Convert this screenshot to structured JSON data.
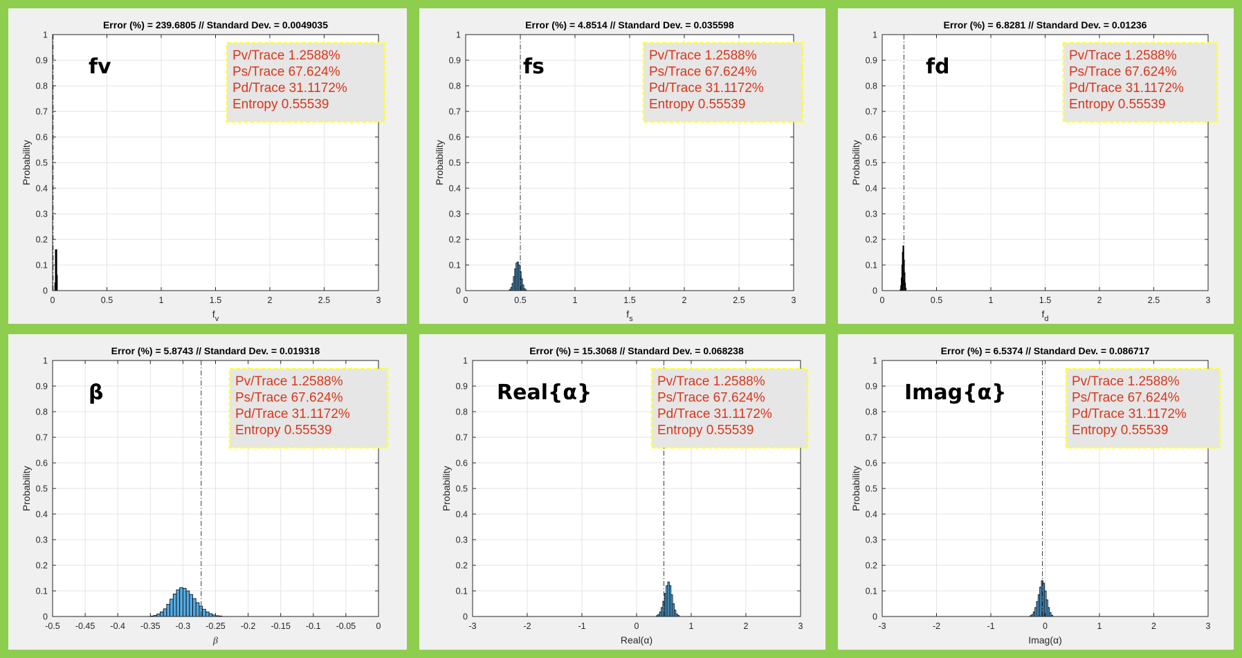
{
  "stats": {
    "pv_trace": "Pv/Trace 1.2588%",
    "ps_trace": "Ps/Trace 67.624%",
    "pd_trace": "Pd/Trace 31.1172%",
    "entropy": "Entropy 0.55539"
  },
  "colors": {
    "background": "#8dce4f",
    "panel": "#f0f0f0",
    "bar_fill": "#56a8df",
    "bar_edge": "#000000",
    "info_text": "#d9361a",
    "info_border": "#ffff33",
    "info_bg": "#e6e6e6"
  },
  "chart_data": [
    {
      "type": "bar",
      "title": "Error (%) = 239.6805 // Standard Dev. = 0.0049035",
      "annotation": "fv",
      "ylabel": "Probability",
      "xlabel": "f",
      "xlabel_sub": "v",
      "xlim": [
        0,
        3
      ],
      "ylim": [
        0,
        1
      ],
      "xticks": [
        0,
        0.5,
        1,
        1.5,
        2,
        2.5,
        3
      ],
      "xtick_labels": [
        "0",
        "0.5",
        "1",
        "1.5",
        "2",
        "2.5",
        "3"
      ],
      "yticks": [
        0,
        0.1,
        0.2,
        0.3,
        0.4,
        0.5,
        0.6,
        0.7,
        0.8,
        0.9,
        1
      ],
      "ytick_labels": [
        "0",
        "0.1",
        "0.2",
        "0.3",
        "0.4",
        "0.5",
        "0.6",
        "0.7",
        "0.8",
        "0.9",
        "1"
      ],
      "reference_line": 0.005,
      "bins_start": 0.02,
      "bin_width": 0.0048,
      "values": [
        0.03,
        0.16,
        0.06,
        0.16,
        0.06
      ]
    },
    {
      "type": "bar",
      "title": "Error (%) = 4.8514 // Standard Dev. = 0.035598",
      "annotation": "fs",
      "ylabel": "Probability",
      "xlabel": "f",
      "xlabel_sub": "s",
      "xlim": [
        0,
        3
      ],
      "ylim": [
        0,
        1
      ],
      "xticks": [
        0,
        0.5,
        1,
        1.5,
        2,
        2.5,
        3
      ],
      "xtick_labels": [
        "0",
        "0.5",
        "1",
        "1.5",
        "2",
        "2.5",
        "3"
      ],
      "yticks": [
        0,
        0.1,
        0.2,
        0.3,
        0.4,
        0.5,
        0.6,
        0.7,
        0.8,
        0.9,
        1
      ],
      "ytick_labels": [
        "0",
        "0.1",
        "0.2",
        "0.3",
        "0.4",
        "0.5",
        "0.6",
        "0.7",
        "0.8",
        "0.9",
        "1"
      ],
      "reference_line": 0.5,
      "bins_start": 0.4,
      "bin_width": 0.012,
      "values": [
        0.004,
        0.012,
        0.028,
        0.055,
        0.085,
        0.108,
        0.112,
        0.1,
        0.075,
        0.046,
        0.022,
        0.008,
        0.003
      ]
    },
    {
      "type": "bar",
      "title": "Error (%) = 6.8281 // Standard Dev. = 0.01236",
      "annotation": "fd",
      "ylabel": "Probability",
      "xlabel": "f",
      "xlabel_sub": "d",
      "xlim": [
        0,
        3
      ],
      "ylim": [
        0,
        1
      ],
      "xticks": [
        0,
        0.5,
        1,
        1.5,
        2,
        2.5,
        3
      ],
      "xtick_labels": [
        "0",
        "0.5",
        "1",
        "1.5",
        "2",
        "2.5",
        "3"
      ],
      "yticks": [
        0,
        0.1,
        0.2,
        0.3,
        0.4,
        0.5,
        0.6,
        0.7,
        0.8,
        0.9,
        1
      ],
      "ytick_labels": [
        "0",
        "0.1",
        "0.2",
        "0.3",
        "0.4",
        "0.5",
        "0.6",
        "0.7",
        "0.8",
        "0.9",
        "1"
      ],
      "reference_line": 0.2,
      "bins_start": 0.165,
      "bin_width": 0.005,
      "values": [
        0.005,
        0.02,
        0.05,
        0.1,
        0.15,
        0.175,
        0.16,
        0.12,
        0.07,
        0.03,
        0.01
      ]
    },
    {
      "type": "bar",
      "title": "Error (%) = 5.8743 // Standard Dev. = 0.019318",
      "annotation": "β",
      "ylabel": "Probability",
      "xlabel": "β",
      "xlabel_sub": "",
      "xlim": [
        -0.5,
        0
      ],
      "ylim": [
        0,
        1
      ],
      "xticks": [
        -0.5,
        -0.45,
        -0.4,
        -0.35,
        -0.3,
        -0.25,
        -0.2,
        -0.15,
        -0.1,
        -0.05,
        0
      ],
      "xtick_labels": [
        "-0.5",
        "-0.45",
        "-0.4",
        "-0.35",
        "-0.3",
        "-0.25",
        "-0.2",
        "-0.15",
        "-0.1",
        "-0.05",
        "0"
      ],
      "yticks": [
        0,
        0.1,
        0.2,
        0.3,
        0.4,
        0.5,
        0.6,
        0.7,
        0.8,
        0.9,
        1
      ],
      "ytick_labels": [
        "0",
        "0.1",
        "0.2",
        "0.3",
        "0.4",
        "0.5",
        "0.6",
        "0.7",
        "0.8",
        "0.9",
        "1"
      ],
      "reference_line": -0.272,
      "bins_start": -0.35,
      "bin_width": 0.005,
      "values": [
        0.002,
        0.004,
        0.01,
        0.018,
        0.03,
        0.048,
        0.068,
        0.088,
        0.104,
        0.113,
        0.11,
        0.1,
        0.086,
        0.07,
        0.054,
        0.04,
        0.028,
        0.018,
        0.011,
        0.006,
        0.003,
        0.002
      ]
    },
    {
      "type": "bar",
      "title": "Error (%) = 15.3068 // Standard Dev. = 0.068238",
      "annotation": "Real{α}",
      "ylabel": "Probability",
      "xlabel": "Real(α)",
      "xlabel_sub": "",
      "xlim": [
        -3,
        3
      ],
      "ylim": [
        0,
        1
      ],
      "xticks": [
        -3,
        -2,
        -1,
        0,
        1,
        2,
        3
      ],
      "xtick_labels": [
        "-3",
        "-2",
        "-1",
        "0",
        "1",
        "2",
        "3"
      ],
      "yticks": [
        0,
        0.1,
        0.2,
        0.3,
        0.4,
        0.5,
        0.6,
        0.7,
        0.8,
        0.9,
        1
      ],
      "ytick_labels": [
        "0",
        "0.1",
        "0.2",
        "0.3",
        "0.4",
        "0.5",
        "0.6",
        "0.7",
        "0.8",
        "0.9",
        "1"
      ],
      "reference_line": 0.5,
      "bins_start": 0.36,
      "bin_width": 0.03,
      "values": [
        0.003,
        0.008,
        0.018,
        0.035,
        0.06,
        0.09,
        0.12,
        0.135,
        0.12,
        0.085,
        0.05,
        0.025,
        0.01,
        0.004
      ]
    },
    {
      "type": "bar",
      "title": "Error (%) = 6.5374 // Standard Dev. = 0.086717",
      "annotation": "Imag{α}",
      "ylabel": "Probability",
      "xlabel": "Imag(α)",
      "xlabel_sub": "",
      "xlim": [
        -3,
        3
      ],
      "ylim": [
        0,
        1
      ],
      "xticks": [
        -3,
        -2,
        -1,
        0,
        1,
        2,
        3
      ],
      "xtick_labels": [
        "-3",
        "-2",
        "-1",
        "0",
        "1",
        "2",
        "3"
      ],
      "yticks": [
        0,
        0.1,
        0.2,
        0.3,
        0.4,
        0.5,
        0.6,
        0.7,
        0.8,
        0.9,
        1
      ],
      "ytick_labels": [
        "0",
        "0.1",
        "0.2",
        "0.3",
        "0.4",
        "0.5",
        "0.6",
        "0.7",
        "0.8",
        "0.9",
        "1"
      ],
      "reference_line": -0.05,
      "bins_start": -0.28,
      "bin_width": 0.03,
      "values": [
        0.003,
        0.008,
        0.018,
        0.035,
        0.058,
        0.085,
        0.115,
        0.14,
        0.13,
        0.1,
        0.065,
        0.035,
        0.015,
        0.005
      ]
    }
  ]
}
